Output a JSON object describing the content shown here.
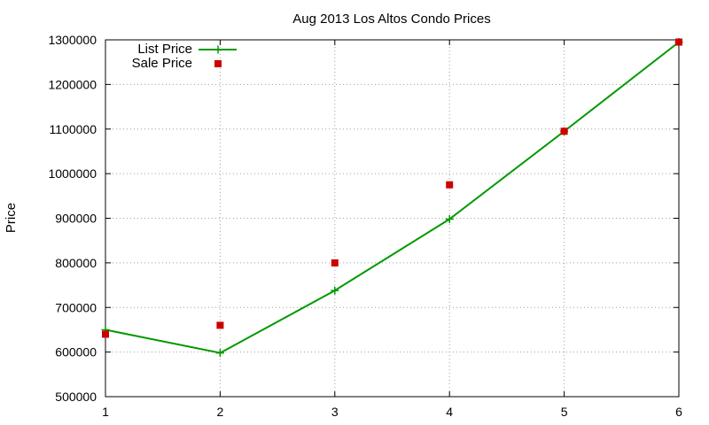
{
  "chart_data": {
    "type": "line",
    "title": "Aug 2013 Los Altos Condo Prices",
    "xlabel": "",
    "ylabel": "Price",
    "xlim": [
      1,
      6
    ],
    "ylim": [
      500000,
      1300000
    ],
    "x_ticks": [
      "1",
      "2",
      "3",
      "4",
      "5",
      "6"
    ],
    "y_ticks": [
      "500000",
      "600000",
      "700000",
      "800000",
      "900000",
      "1000000",
      "1100000",
      "1200000",
      "1300000"
    ],
    "grid": true,
    "legend_position": "top-left",
    "series": [
      {
        "name": "List Price",
        "style": "line with plus markers",
        "color": "#009900",
        "x": [
          1,
          2,
          3,
          4,
          5,
          6
        ],
        "y": [
          650000,
          598000,
          738000,
          898000,
          1095000,
          1295000
        ]
      },
      {
        "name": "Sale Price",
        "style": "square markers",
        "color": "#cc0000",
        "x": [
          1,
          2,
          3,
          4,
          5,
          6
        ],
        "y": [
          640000,
          660000,
          800000,
          975000,
          1095000,
          1295000
        ]
      }
    ]
  }
}
